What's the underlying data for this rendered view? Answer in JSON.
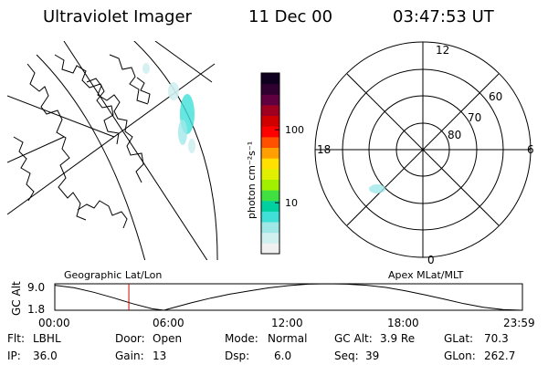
{
  "header": {
    "title": "Ultraviolet Imager",
    "date": "11 Dec 00",
    "time": "03:47:53 UT"
  },
  "map_panel": {
    "label": "Geographic Lat/Lon"
  },
  "colorbar": {
    "unit_label": "photon cm⁻²s⁻¹",
    "tick_labels": [
      "100",
      "10"
    ],
    "tick_values": [
      100,
      10
    ],
    "range": [
      2,
      600
    ],
    "colors": [
      "#f0f0f0",
      "#d0f0f0",
      "#a0e8e8",
      "#40e0d8",
      "#00d0a0",
      "#40e040",
      "#a0f000",
      "#e0f000",
      "#ffe000",
      "#ffa000",
      "#ff5000",
      "#ff0000",
      "#d00000",
      "#a00020",
      "#600040",
      "#300030",
      "#100020"
    ]
  },
  "polar_panel": {
    "label": "Apex MLat/MLT",
    "mlt_labels": {
      "top": "12",
      "bottom": "0",
      "left": "18",
      "right": "6"
    },
    "lat_labels": [
      "60",
      "70",
      "80"
    ],
    "lat_values": [
      60,
      70,
      80
    ]
  },
  "altitude_panel": {
    "ylabel": "GC Alt",
    "ytick_labels": [
      "9.0",
      "1.8"
    ],
    "xtick_labels": [
      "00:00",
      "06:00",
      "12:00",
      "18:00",
      "23:59"
    ],
    "current_marker_hours": 3.8
  },
  "chart_data": {
    "type": "line",
    "title": "",
    "xlabel": "",
    "ylabel": "GC Alt",
    "xlim": [
      0,
      24
    ],
    "ylim": [
      1.8,
      9.0
    ],
    "x": [
      0,
      1,
      2,
      3,
      4,
      5,
      5.6,
      6,
      7,
      8,
      9,
      10,
      11,
      12,
      13,
      14,
      15,
      16,
      17,
      18,
      19,
      20,
      21,
      22,
      23,
      23.98
    ],
    "series": [
      {
        "values": [
          8.6,
          7.9,
          6.7,
          5.2,
          3.6,
          2.2,
          1.8,
          2.4,
          3.8,
          5.1,
          6.2,
          7.1,
          7.9,
          8.5,
          8.9,
          9.0,
          8.9,
          8.6,
          8.0,
          7.1,
          6.0,
          4.8,
          3.6,
          2.6,
          2.0,
          1.8
        ]
      }
    ]
  },
  "status": {
    "filter_label": "Flt:",
    "filter_value": "LBHL",
    "ip_label": "IP:",
    "ip_value": "36.0",
    "door_label": "Door:",
    "door_value": "Open",
    "gain_label": "Gain:",
    "gain_value": "13",
    "mode_label": "Mode:",
    "mode_value": "Normal",
    "dsp_label": "Dsp:",
    "dsp_value": "6.0",
    "gcalt_label": "GC Alt:",
    "gcalt_value": "3.9 Re",
    "seq_label": "Seq:",
    "seq_value": "39",
    "glat_label": "GLat:",
    "glat_value": "70.3",
    "glon_label": "GLon:",
    "glon_value": "262.7"
  }
}
